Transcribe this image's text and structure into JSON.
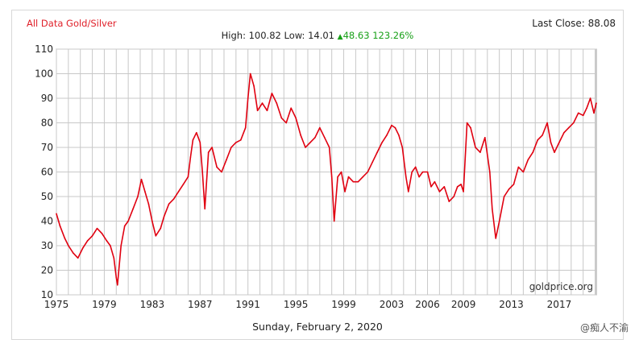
{
  "header": {
    "title": "All Data Gold/Silver",
    "last_close_label": "Last Close:",
    "last_close_value": "88.08",
    "high_label": "High:",
    "high_value": "100.82",
    "low_label": "Low:",
    "low_value": "14.01",
    "change_value": "48.63",
    "change_percent": "123.26%"
  },
  "footer": {
    "date": "Sunday, February 2, 2020",
    "watermark": "@痴人不渝"
  },
  "colors": {
    "line": "#e00010",
    "title": "#e0212a",
    "up": "#18a018",
    "grid": "#c8c8c8"
  },
  "chart_data": {
    "type": "line",
    "title": "All Data Gold/Silver",
    "source_label": "goldprice.org",
    "xlabel": "",
    "ylabel": "",
    "xlim": [
      1975,
      2020.1
    ],
    "ylim": [
      10,
      110
    ],
    "grid": true,
    "x_ticks": [
      "1975",
      "1979",
      "1983",
      "1987",
      "1991",
      "1995",
      "1999",
      "2003",
      "2006",
      "2009",
      "2013",
      "2017"
    ],
    "x_tick_positions": [
      1975,
      1979,
      1983,
      1987,
      1991,
      1995,
      1999,
      2003,
      2006,
      2009,
      2013,
      2017
    ],
    "y_ticks": [
      10,
      20,
      30,
      40,
      50,
      60,
      70,
      80,
      90,
      100,
      110
    ],
    "series": [
      {
        "x": [
          1975.0,
          1975.3,
          1975.7,
          1976.0,
          1976.4,
          1976.8,
          1977.2,
          1977.6,
          1978.0,
          1978.4,
          1978.8,
          1979.2,
          1979.5,
          1979.8,
          1980.0,
          1980.1,
          1980.4,
          1980.7,
          1981.0,
          1981.4,
          1981.8,
          1982.1,
          1982.4,
          1982.7,
          1983.0,
          1983.3,
          1983.7,
          1984.0,
          1984.4,
          1984.8,
          1985.2,
          1985.6,
          1986.0,
          1986.2,
          1986.4,
          1986.7,
          1987.0,
          1987.2,
          1987.4,
          1987.7,
          1988.0,
          1988.4,
          1988.8,
          1989.2,
          1989.6,
          1990.0,
          1990.4,
          1990.8,
          1991.0,
          1991.2,
          1991.5,
          1991.8,
          1992.2,
          1992.6,
          1993.0,
          1993.4,
          1993.8,
          1994.2,
          1994.6,
          1995.0,
          1995.4,
          1995.8,
          1996.2,
          1996.6,
          1997.0,
          1997.4,
          1997.8,
          1998.0,
          1998.2,
          1998.5,
          1998.8,
          1999.1,
          1999.4,
          1999.8,
          2000.2,
          2000.6,
          2001.0,
          2001.4,
          2001.8,
          2002.2,
          2002.6,
          2003.0,
          2003.3,
          2003.6,
          2003.9,
          2004.2,
          2004.4,
          2004.7,
          2005.0,
          2005.3,
          2005.6,
          2006.0,
          2006.3,
          2006.6,
          2007.0,
          2007.4,
          2007.8,
          2008.2,
          2008.5,
          2008.8,
          2009.0,
          2009.3,
          2009.6,
          2010.0,
          2010.4,
          2010.8,
          2011.2,
          2011.4,
          2011.7,
          2012.0,
          2012.4,
          2012.8,
          2013.2,
          2013.6,
          2014.0,
          2014.4,
          2014.8,
          2015.2,
          2015.6,
          2016.0,
          2016.3,
          2016.6,
          2017.0,
          2017.4,
          2017.8,
          2018.2,
          2018.6,
          2019.0,
          2019.3,
          2019.6,
          2019.9,
          2020.1
        ],
        "y": [
          43,
          38,
          33,
          30,
          27,
          25,
          29,
          32,
          34,
          37,
          35,
          32,
          30,
          25,
          17,
          14,
          30,
          38,
          40,
          45,
          50,
          57,
          52,
          47,
          40,
          34,
          37,
          42,
          47,
          49,
          52,
          55,
          58,
          66,
          73,
          76,
          72,
          60,
          45,
          68,
          70,
          62,
          60,
          65,
          70,
          72,
          73,
          78,
          90,
          100,
          95,
          85,
          88,
          85,
          92,
          88,
          82,
          80,
          86,
          82,
          75,
          70,
          72,
          74,
          78,
          74,
          70,
          58,
          40,
          58,
          60,
          52,
          58,
          56,
          56,
          58,
          60,
          64,
          68,
          72,
          75,
          79,
          78,
          75,
          70,
          58,
          52,
          60,
          62,
          58,
          60,
          60,
          54,
          56,
          52,
          54,
          48,
          50,
          54,
          55,
          52,
          80,
          78,
          70,
          68,
          74,
          60,
          45,
          33,
          40,
          50,
          53,
          55,
          62,
          60,
          65,
          68,
          73,
          75,
          80,
          72,
          68,
          72,
          76,
          78,
          80,
          84,
          83,
          86,
          90,
          84,
          88
        ]
      }
    ]
  }
}
